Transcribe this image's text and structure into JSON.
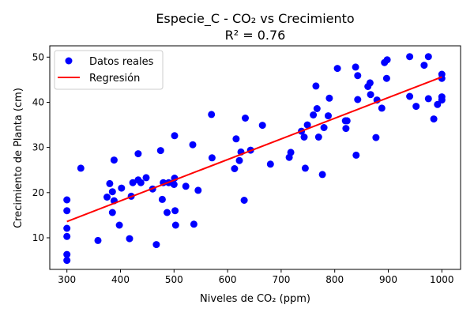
{
  "chart_data": {
    "type": "scatter",
    "title_line1": "Especie_C - CO₂ vs Crecimiento",
    "title_line2": "R² = 0.76",
    "xlabel": "Niveles de CO₂ (ppm)",
    "ylabel": "Crecimiento de Planta (cm)",
    "xlim": [
      268,
      1035
    ],
    "ylim": [
      3,
      52.5
    ],
    "xticks": [
      300,
      400,
      500,
      600,
      700,
      800,
      900,
      1000
    ],
    "yticks": [
      10,
      20,
      30,
      40,
      50
    ],
    "grid": false,
    "legend_position": "top-left",
    "colors": {
      "points": "#0000ff",
      "regression": "#ff0000"
    },
    "series": [
      {
        "name": "Datos reales",
        "kind": "scatter",
        "points": [
          [
            300,
            5.0
          ],
          [
            300,
            6.3
          ],
          [
            300,
            10.3
          ],
          [
            300,
            12.1
          ],
          [
            300,
            16.0
          ],
          [
            300,
            18.4
          ],
          [
            326,
            25.4
          ],
          [
            358,
            9.4
          ],
          [
            375,
            19.0
          ],
          [
            380,
            22.0
          ],
          [
            385,
            20.2
          ],
          [
            385,
            15.6
          ],
          [
            388,
            18.2
          ],
          [
            388,
            27.2
          ],
          [
            398,
            12.8
          ],
          [
            402,
            21.0
          ],
          [
            417,
            9.8
          ],
          [
            420,
            19.2
          ],
          [
            423,
            22.2
          ],
          [
            433,
            28.6
          ],
          [
            433,
            22.8
          ],
          [
            438,
            22.2
          ],
          [
            448,
            23.3
          ],
          [
            460,
            20.8
          ],
          [
            467,
            8.5
          ],
          [
            475,
            29.3
          ],
          [
            478,
            18.5
          ],
          [
            480,
            22.2
          ],
          [
            487,
            15.6
          ],
          [
            490,
            22.2
          ],
          [
            498,
            22.1
          ],
          [
            500,
            21.8
          ],
          [
            501,
            32.6
          ],
          [
            501,
            23.2
          ],
          [
            502,
            16.0
          ],
          [
            503,
            12.8
          ],
          [
            522,
            21.4
          ],
          [
            535,
            30.6
          ],
          [
            537,
            13.0
          ],
          [
            545,
            20.5
          ],
          [
            570,
            37.3
          ],
          [
            571,
            27.7
          ],
          [
            613,
            25.3
          ],
          [
            616,
            31.9
          ],
          [
            622,
            27.1
          ],
          [
            625,
            29.0
          ],
          [
            631,
            18.3
          ],
          [
            633,
            36.5
          ],
          [
            643,
            29.4
          ],
          [
            665,
            34.9
          ],
          [
            680,
            26.3
          ],
          [
            715,
            27.8
          ],
          [
            718,
            28.9
          ],
          [
            738,
            33.6
          ],
          [
            743,
            32.3
          ],
          [
            745,
            25.4
          ],
          [
            749,
            35.0
          ],
          [
            760,
            37.2
          ],
          [
            765,
            43.6
          ],
          [
            767,
            38.6
          ],
          [
            770,
            32.3
          ],
          [
            777,
            24.0
          ],
          [
            780,
            34.4
          ],
          [
            788,
            37.0
          ],
          [
            790,
            40.9
          ],
          [
            805,
            47.5
          ],
          [
            820,
            35.9
          ],
          [
            821,
            34.2
          ],
          [
            823,
            35.9
          ],
          [
            839,
            47.8
          ],
          [
            840,
            28.3
          ],
          [
            843,
            40.6
          ],
          [
            843,
            45.9
          ],
          [
            862,
            43.5
          ],
          [
            866,
            44.3
          ],
          [
            867,
            41.7
          ],
          [
            877,
            32.2
          ],
          [
            879,
            40.5
          ],
          [
            888,
            38.7
          ],
          [
            893,
            48.8
          ],
          [
            897,
            45.3
          ],
          [
            898,
            49.4
          ],
          [
            940,
            41.3
          ],
          [
            940,
            50.1
          ],
          [
            952,
            39.1
          ],
          [
            967,
            48.2
          ],
          [
            975,
            50.1
          ],
          [
            975,
            40.8
          ],
          [
            985,
            36.3
          ],
          [
            992,
            39.5
          ],
          [
            1000,
            46.2
          ],
          [
            1000,
            45.3
          ],
          [
            1000,
            41.2
          ],
          [
            1000,
            40.5
          ]
        ]
      },
      {
        "name": "Regresión",
        "kind": "line",
        "points": [
          [
            300,
            13.6
          ],
          [
            1000,
            45.6
          ]
        ]
      }
    ]
  }
}
